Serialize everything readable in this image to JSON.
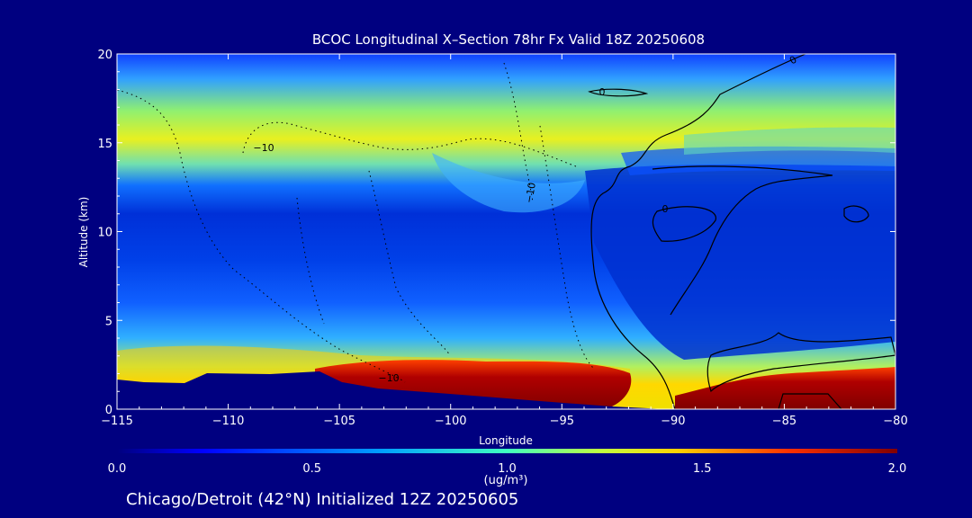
{
  "chart_data": {
    "type": "heatmap",
    "title": "BCOC Longitudinal X–Section 78hr  Fx Valid 18Z 20250608",
    "xlabel": "Longitude",
    "ylabel": "Altitude (km)",
    "xlim": [
      -115,
      -80
    ],
    "ylim": [
      0,
      20
    ],
    "x_ticks": [
      -115,
      -110,
      -105,
      -100,
      -95,
      -90,
      -85,
      -80
    ],
    "x_tick_labels": [
      "−115",
      "−110",
      "−105",
      "−100",
      "−95",
      "−90",
      "−85",
      "−80"
    ],
    "y_ticks": [
      0,
      5,
      10,
      15,
      20
    ],
    "y_tick_labels": [
      "0",
      "5",
      "10",
      "15",
      "20"
    ],
    "colorbar": {
      "min": 0.0,
      "max": 2.0,
      "ticks": [
        "0.0",
        "0.5",
        "1.0",
        "1.5",
        "2.0"
      ],
      "unit_label": "(ug/m³)",
      "colormap": "jet"
    },
    "contour_labels": [
      "−10",
      "−10",
      "−10",
      "0",
      "0",
      "0"
    ],
    "description_values": [
      {
        "altitude_km": 14.5,
        "value": 1.2
      },
      {
        "altitude_km": 10.0,
        "value": 0.3
      },
      {
        "altitude_km": 1.5,
        "value": 2.0
      }
    ]
  },
  "footer": {
    "text": "Chicago/Detroit (42°N) Initialized 12Z 20250605"
  }
}
